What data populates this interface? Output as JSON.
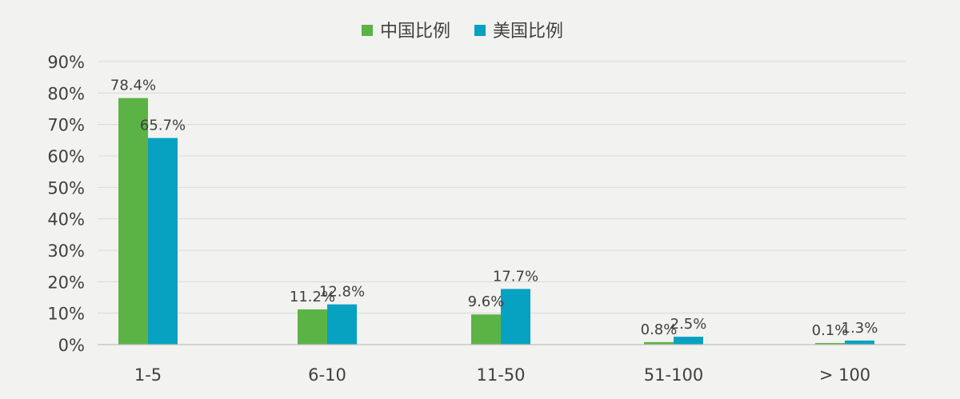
{
  "chart_data": {
    "type": "bar",
    "title": "",
    "xlabel": "",
    "ylabel": "",
    "categories": [
      "1-5",
      "6-10",
      "11-50",
      "51-100",
      "> 100"
    ],
    "series": [
      {
        "name": "中国比例",
        "color": "#5bb346",
        "values": [
          78.4,
          11.2,
          9.6,
          0.8,
          0.1
        ],
        "labels": [
          "78.4%",
          "11.2%",
          "9.6%",
          "0.8%",
          "0.1%"
        ]
      },
      {
        "name": "美国比例",
        "color": "#07a1c1",
        "values": [
          65.7,
          12.8,
          17.7,
          2.5,
          1.3
        ],
        "labels": [
          "65.7%",
          "12.8%",
          "17.7%",
          "2.5%",
          "1.3%"
        ]
      }
    ],
    "ylim": [
      0,
      90
    ],
    "yticks": [
      0,
      10,
      20,
      30,
      40,
      50,
      60,
      70,
      80,
      90
    ],
    "ytick_labels": [
      "0%",
      "10%",
      "20%",
      "30%",
      "40%",
      "50%",
      "60%",
      "70%",
      "80%",
      "90%"
    ],
    "grid": true,
    "legend_position": "top-center"
  }
}
